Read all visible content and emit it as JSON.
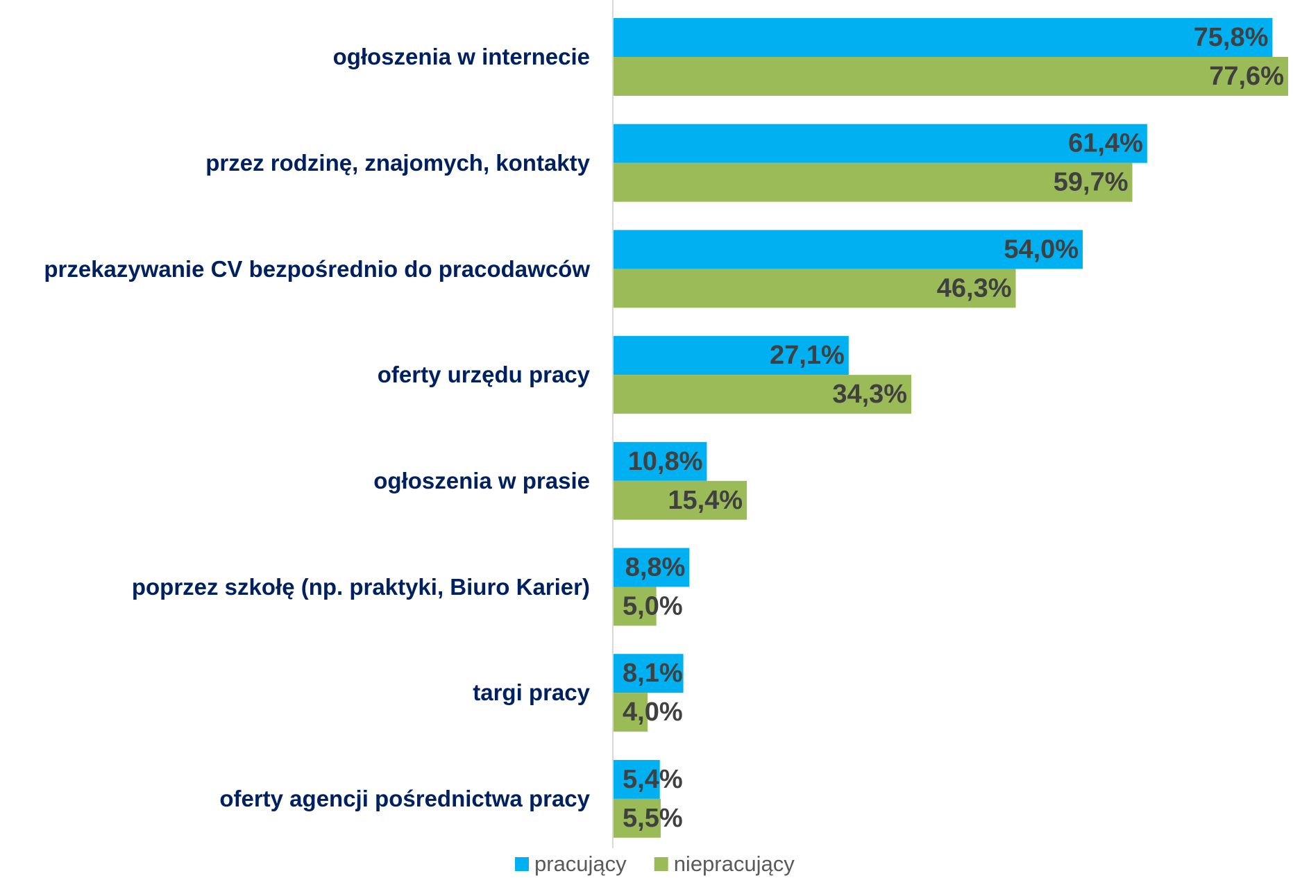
{
  "chart_data": {
    "type": "bar",
    "orientation": "horizontal",
    "categories": [
      "ogłoszenia w internecie",
      "przez rodzinę, znajomych, kontakty",
      "przekazywanie CV bezpośrednio do pracodawców",
      "oferty urzędu pracy",
      "ogłoszenia w prasie",
      "poprzez szkołę (np. praktyki, Biuro Karier)",
      "targi pracy",
      "oferty agencji pośrednictwa pracy"
    ],
    "series": [
      {
        "name": "pracujący",
        "color": "#00b0f0",
        "values": [
          75.8,
          61.4,
          54.0,
          27.1,
          10.8,
          8.8,
          8.1,
          5.4
        ],
        "value_labels": [
          "75,8%",
          "61,4%",
          "54,0%",
          "27,1%",
          "10,8%",
          "8,8%",
          "8,1%",
          "5,4%"
        ]
      },
      {
        "name": "niepracujący",
        "color": "#9bbb59",
        "values": [
          77.6,
          59.7,
          46.3,
          34.3,
          15.4,
          5.0,
          4.0,
          5.5
        ],
        "value_labels": [
          "77,6%",
          "59,7%",
          "46,3%",
          "34,3%",
          "15,4%",
          "5,0%",
          "4,0%",
          "5,5%"
        ]
      }
    ],
    "xlim": [
      0,
      78
    ],
    "legend": "bottom"
  }
}
